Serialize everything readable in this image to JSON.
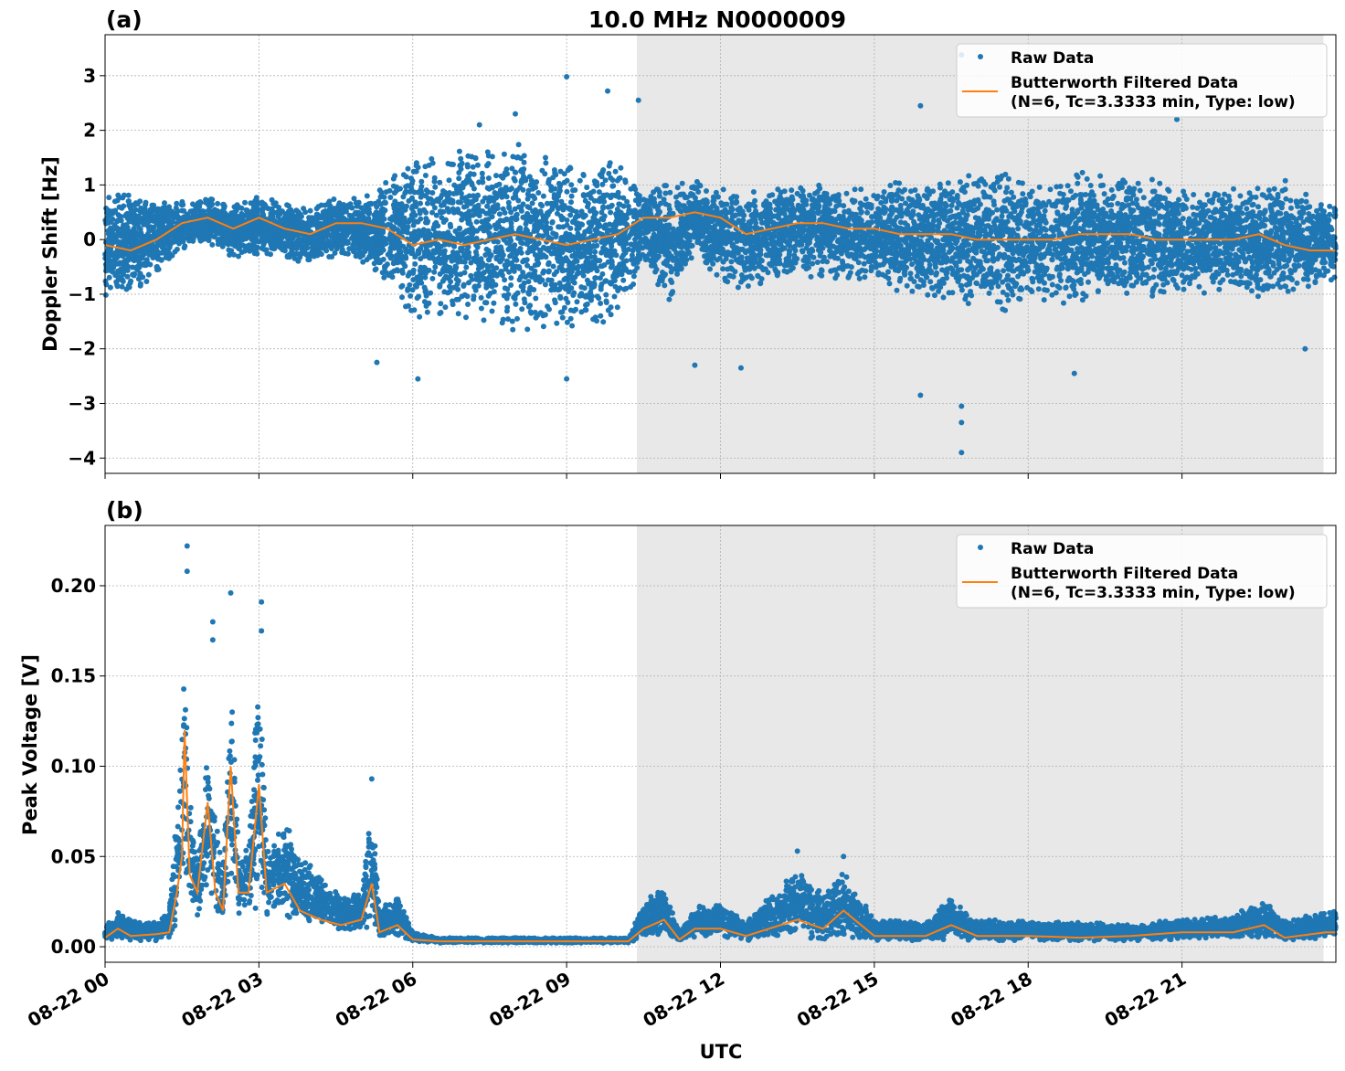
{
  "title": "10.0 MHz N0000009",
  "xlabel": "UTC",
  "x_ticks": [
    "08-22 00",
    "08-22 03",
    "08-22 06",
    "08-22 09",
    "08-22 12",
    "08-22 15",
    "08-22 18",
    "08-22 21"
  ],
  "x_tick_hours": [
    0,
    3,
    6,
    9,
    12,
    15,
    18,
    21
  ],
  "xlim_hours": [
    0,
    24
  ],
  "shaded_region_hours": [
    10.37,
    23.76
  ],
  "colors": {
    "raw": "#1f77b4",
    "filtered": "#ff7f0e",
    "shade": "#e8e8e8",
    "grid": "#b0b0b0"
  },
  "legend": {
    "raw": "Raw Data",
    "filtered_line1": "Butterworth Filtered Data",
    "filtered_line2": "(N=6, Tc=3.3333 min, Type: low)",
    "placement": "top-right"
  },
  "chart_data": [
    {
      "type": "scatter",
      "panel_label": "(a)",
      "ylabel": "Doppler Shift [Hz]",
      "ylim": [
        -4.28,
        3.75
      ],
      "y_ticks": [
        3,
        2,
        1,
        0,
        -1,
        -2,
        -3,
        -4
      ],
      "y_tick_labels": [
        "3",
        "2",
        "1",
        "0",
        "−1",
        "−2",
        "−3",
        "−4"
      ],
      "grid": true,
      "series": [
        {
          "name": "Raw Data",
          "kind": "scatter-envelope",
          "columns": [
            "hour",
            "low",
            "high"
          ],
          "points": [
            [
              0,
              -1.1,
              1.0
            ],
            [
              0.5,
              -1.0,
              0.9
            ],
            [
              1,
              -0.7,
              0.8
            ],
            [
              1.5,
              -0.2,
              0.7
            ],
            [
              2,
              -0.1,
              0.8
            ],
            [
              2.5,
              -0.4,
              0.7
            ],
            [
              3,
              -0.3,
              0.8
            ],
            [
              3.5,
              -0.4,
              0.7
            ],
            [
              4,
              -0.5,
              0.6
            ],
            [
              4.5,
              -0.3,
              0.9
            ],
            [
              5,
              -0.5,
              0.8
            ],
            [
              5.5,
              -0.9,
              1.1
            ],
            [
              6,
              -1.6,
              1.6
            ],
            [
              6.5,
              -1.5,
              1.6
            ],
            [
              7,
              -1.6,
              1.7
            ],
            [
              7.5,
              -1.6,
              1.7
            ],
            [
              8,
              -1.7,
              1.8
            ],
            [
              8.5,
              -1.7,
              1.7
            ],
            [
              9,
              -1.8,
              1.6
            ],
            [
              9.5,
              -1.6,
              1.5
            ],
            [
              10,
              -1.6,
              1.6
            ],
            [
              10.5,
              -0.4,
              0.9
            ],
            [
              11,
              -1.3,
              1.2
            ],
            [
              11.5,
              -0.3,
              1.1
            ],
            [
              12,
              -0.8,
              1.0
            ],
            [
              12.5,
              -1.0,
              1.0
            ],
            [
              13,
              -0.8,
              1.0
            ],
            [
              13.5,
              -0.7,
              1.0
            ],
            [
              14,
              -0.7,
              1.1
            ],
            [
              14.5,
              -0.8,
              1.0
            ],
            [
              15,
              -0.8,
              1.0
            ],
            [
              15.5,
              -1.0,
              1.1
            ],
            [
              16,
              -1.1,
              1.2
            ],
            [
              16.5,
              -1.1,
              1.2
            ],
            [
              17,
              -1.3,
              1.3
            ],
            [
              17.5,
              -1.4,
              1.3
            ],
            [
              18,
              -1.3,
              1.2
            ],
            [
              18.5,
              -1.2,
              1.2
            ],
            [
              19,
              -1.2,
              1.3
            ],
            [
              19.5,
              -1.2,
              1.2
            ],
            [
              20,
              -1.1,
              1.2
            ],
            [
              20.5,
              -1.1,
              1.1
            ],
            [
              21,
              -1.0,
              1.0
            ],
            [
              21.5,
              -1.0,
              1.0
            ],
            [
              22,
              -1.0,
              1.0
            ],
            [
              22.5,
              -1.1,
              1.1
            ],
            [
              23,
              -1.1,
              1.1
            ],
            [
              23.5,
              -0.9,
              0.8
            ],
            [
              24,
              -0.8,
              0.7
            ]
          ],
          "outliers": [
            [
              9.0,
              2.98
            ],
            [
              16.7,
              -3.9
            ],
            [
              16.7,
              -3.35
            ],
            [
              16.7,
              -3.05
            ],
            [
              15.9,
              -2.85
            ],
            [
              8.0,
              2.3
            ],
            [
              9.8,
              2.72
            ],
            [
              10.4,
              2.55
            ],
            [
              15.9,
              2.45
            ],
            [
              5.3,
              -2.25
            ],
            [
              12.4,
              -2.35
            ],
            [
              18.9,
              -2.45
            ],
            [
              9.0,
              -2.55
            ],
            [
              6.1,
              -2.55
            ],
            [
              16.7,
              3.38
            ],
            [
              20.9,
              2.2
            ],
            [
              23.4,
              -2.0
            ],
            [
              11.5,
              -2.3
            ],
            [
              7.3,
              2.1
            ]
          ]
        },
        {
          "name": "Butterworth Filtered Data",
          "kind": "line",
          "x": [
            0,
            0.5,
            1,
            1.5,
            2,
            2.5,
            3,
            3.5,
            4,
            4.5,
            5,
            5.5,
            6,
            6.5,
            7,
            7.5,
            8,
            8.5,
            9,
            9.5,
            10,
            10.5,
            11,
            11.5,
            12,
            12.5,
            13,
            13.5,
            14,
            14.5,
            15,
            15.5,
            16,
            16.5,
            17,
            17.5,
            18,
            18.5,
            19,
            19.5,
            20,
            20.5,
            21,
            21.5,
            22,
            22.5,
            23,
            23.5,
            24
          ],
          "y": [
            -0.1,
            -0.2,
            0.0,
            0.3,
            0.4,
            0.2,
            0.4,
            0.2,
            0.1,
            0.3,
            0.3,
            0.2,
            -0.1,
            0.0,
            -0.1,
            0.0,
            0.1,
            0.0,
            -0.1,
            0.0,
            0.1,
            0.4,
            0.4,
            0.5,
            0.4,
            0.1,
            0.2,
            0.3,
            0.3,
            0.2,
            0.2,
            0.1,
            0.1,
            0.1,
            0.0,
            0.0,
            0.0,
            0.0,
            0.1,
            0.1,
            0.1,
            0.0,
            0.0,
            0.0,
            0.0,
            0.1,
            -0.1,
            -0.2,
            -0.2
          ]
        }
      ]
    },
    {
      "type": "scatter",
      "panel_label": "(b)",
      "ylabel": "Peak Voltage [V]",
      "ylim": [
        -0.0086,
        0.2334
      ],
      "y_ticks": [
        0,
        0.05,
        0.1,
        0.15,
        0.2
      ],
      "y_tick_labels": [
        "0.00",
        "0.05",
        "0.10",
        "0.15",
        "0.20"
      ],
      "grid": true,
      "series": [
        {
          "name": "Raw Data",
          "kind": "scatter-envelope",
          "columns": [
            "hour",
            "low",
            "high"
          ],
          "points": [
            [
              0,
              0.003,
              0.012
            ],
            [
              0.25,
              0.004,
              0.02
            ],
            [
              0.5,
              0.003,
              0.015
            ],
            [
              1,
              0.003,
              0.014
            ],
            [
              1.25,
              0.004,
              0.02
            ],
            [
              1.4,
              0.01,
              0.085
            ],
            [
              1.5,
              0.02,
              0.11
            ],
            [
              1.55,
              0.03,
              0.2
            ],
            [
              1.65,
              0.02,
              0.09
            ],
            [
              1.8,
              0.015,
              0.05
            ],
            [
              2.0,
              0.025,
              0.11
            ],
            [
              2.15,
              0.015,
              0.09
            ],
            [
              2.3,
              0.012,
              0.05
            ],
            [
              2.45,
              0.02,
              0.16
            ],
            [
              2.6,
              0.015,
              0.06
            ],
            [
              2.8,
              0.02,
              0.055
            ],
            [
              3.0,
              0.02,
              0.17
            ],
            [
              3.15,
              0.015,
              0.06
            ],
            [
              3.5,
              0.012,
              0.07
            ],
            [
              3.8,
              0.01,
              0.055
            ],
            [
              4.2,
              0.01,
              0.04
            ],
            [
              4.6,
              0.008,
              0.03
            ],
            [
              5.0,
              0.008,
              0.03
            ],
            [
              5.2,
              0.01,
              0.09
            ],
            [
              5.35,
              0.005,
              0.02
            ],
            [
              5.7,
              0.005,
              0.03
            ],
            [
              6.0,
              0.003,
              0.008
            ],
            [
              6.5,
              0.002,
              0.005
            ],
            [
              10.2,
              0.002,
              0.005
            ],
            [
              10.5,
              0.005,
              0.025
            ],
            [
              10.9,
              0.006,
              0.035
            ],
            [
              11.2,
              0.003,
              0.008
            ],
            [
              11.5,
              0.005,
              0.022
            ],
            [
              12,
              0.005,
              0.025
            ],
            [
              12.5,
              0.003,
              0.015
            ],
            [
              13.5,
              0.005,
              0.045
            ],
            [
              14,
              0.004,
              0.03
            ],
            [
              14.4,
              0.005,
              0.045
            ],
            [
              15,
              0.003,
              0.015
            ],
            [
              16,
              0.003,
              0.014
            ],
            [
              16.5,
              0.004,
              0.028
            ],
            [
              17,
              0.003,
              0.015
            ],
            [
              18,
              0.003,
              0.015
            ],
            [
              19,
              0.003,
              0.014
            ],
            [
              20,
              0.003,
              0.012
            ],
            [
              21,
              0.004,
              0.016
            ],
            [
              22,
              0.004,
              0.018
            ],
            [
              22.6,
              0.005,
              0.027
            ],
            [
              23,
              0.003,
              0.014
            ],
            [
              23.8,
              0.004,
              0.02
            ],
            [
              24,
              0.004,
              0.02
            ]
          ],
          "outliers": [
            [
              1.6,
              0.222
            ],
            [
              1.6,
              0.208
            ],
            [
              2.45,
              0.196
            ],
            [
              3.05,
              0.191
            ],
            [
              2.1,
              0.18
            ],
            [
              2.1,
              0.17
            ],
            [
              5.2,
              0.093
            ],
            [
              13.5,
              0.053
            ],
            [
              14.4,
              0.05
            ],
            [
              3.05,
              0.175
            ]
          ]
        },
        {
          "name": "Butterworth Filtered Data",
          "kind": "line",
          "x": [
            0,
            0.25,
            0.5,
            1,
            1.25,
            1.4,
            1.5,
            1.55,
            1.65,
            1.8,
            2.0,
            2.15,
            2.3,
            2.45,
            2.6,
            2.8,
            3.0,
            3.15,
            3.5,
            3.8,
            4.2,
            4.6,
            5.0,
            5.2,
            5.35,
            5.7,
            6.0,
            6.5,
            10.2,
            10.5,
            10.9,
            11.2,
            11.5,
            12,
            12.5,
            13.5,
            14,
            14.4,
            15,
            16,
            16.5,
            17,
            18,
            19,
            20,
            21,
            22,
            22.6,
            23,
            23.8,
            24
          ],
          "y": [
            0.005,
            0.01,
            0.006,
            0.007,
            0.008,
            0.03,
            0.05,
            0.12,
            0.04,
            0.03,
            0.08,
            0.03,
            0.02,
            0.1,
            0.03,
            0.03,
            0.09,
            0.03,
            0.035,
            0.02,
            0.015,
            0.012,
            0.015,
            0.035,
            0.008,
            0.012,
            0.004,
            0.003,
            0.003,
            0.01,
            0.015,
            0.004,
            0.01,
            0.01,
            0.006,
            0.015,
            0.01,
            0.02,
            0.006,
            0.006,
            0.012,
            0.006,
            0.006,
            0.005,
            0.006,
            0.008,
            0.008,
            0.012,
            0.005,
            0.008,
            0.008
          ]
        }
      ]
    }
  ]
}
